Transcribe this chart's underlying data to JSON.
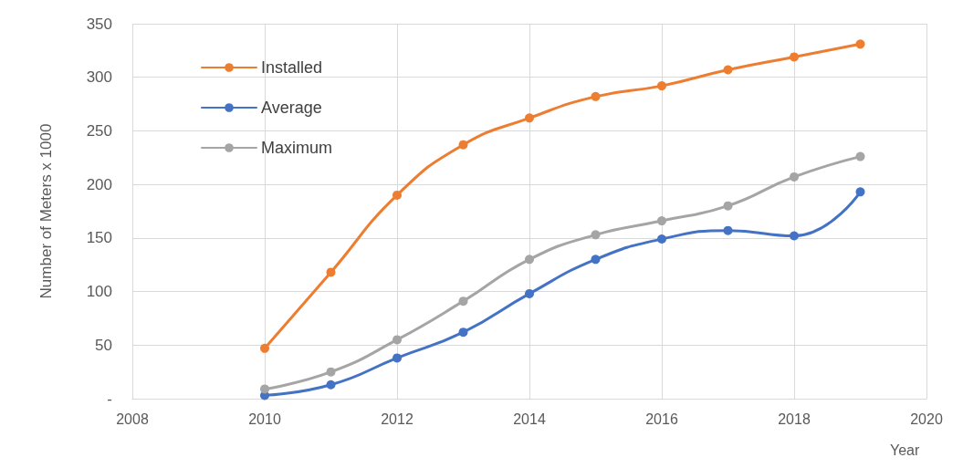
{
  "chart_data": {
    "type": "line",
    "xlabel": "Year",
    "ylabel": "Number of Meters x 1000",
    "x": [
      2010,
      2011,
      2012,
      2013,
      2014,
      2015,
      2016,
      2017,
      2018,
      2019
    ],
    "series": [
      {
        "name": "Installed",
        "color": "#ed7d31",
        "values": [
          47,
          118,
          190,
          237,
          262,
          282,
          292,
          307,
          319,
          331
        ]
      },
      {
        "name": "Average",
        "color": "#4472c4",
        "values": [
          3,
          13,
          38,
          62,
          98,
          130,
          149,
          157,
          152,
          193
        ]
      },
      {
        "name": "Maximum",
        "color": "#a5a5a5",
        "values": [
          9,
          25,
          55,
          91,
          130,
          153,
          166,
          180,
          207,
          226
        ]
      }
    ],
    "xlim": [
      2008,
      2020
    ],
    "xticks": [
      2008,
      2010,
      2012,
      2014,
      2016,
      2018,
      2020
    ],
    "ylim": [
      0,
      350
    ],
    "yticks": [
      {
        "value": 0,
        "label": "-"
      },
      50,
      100,
      150,
      200,
      250,
      300,
      350
    ],
    "grid": true,
    "legend": "top left",
    "marker": "circle",
    "line_style": "solid"
  }
}
